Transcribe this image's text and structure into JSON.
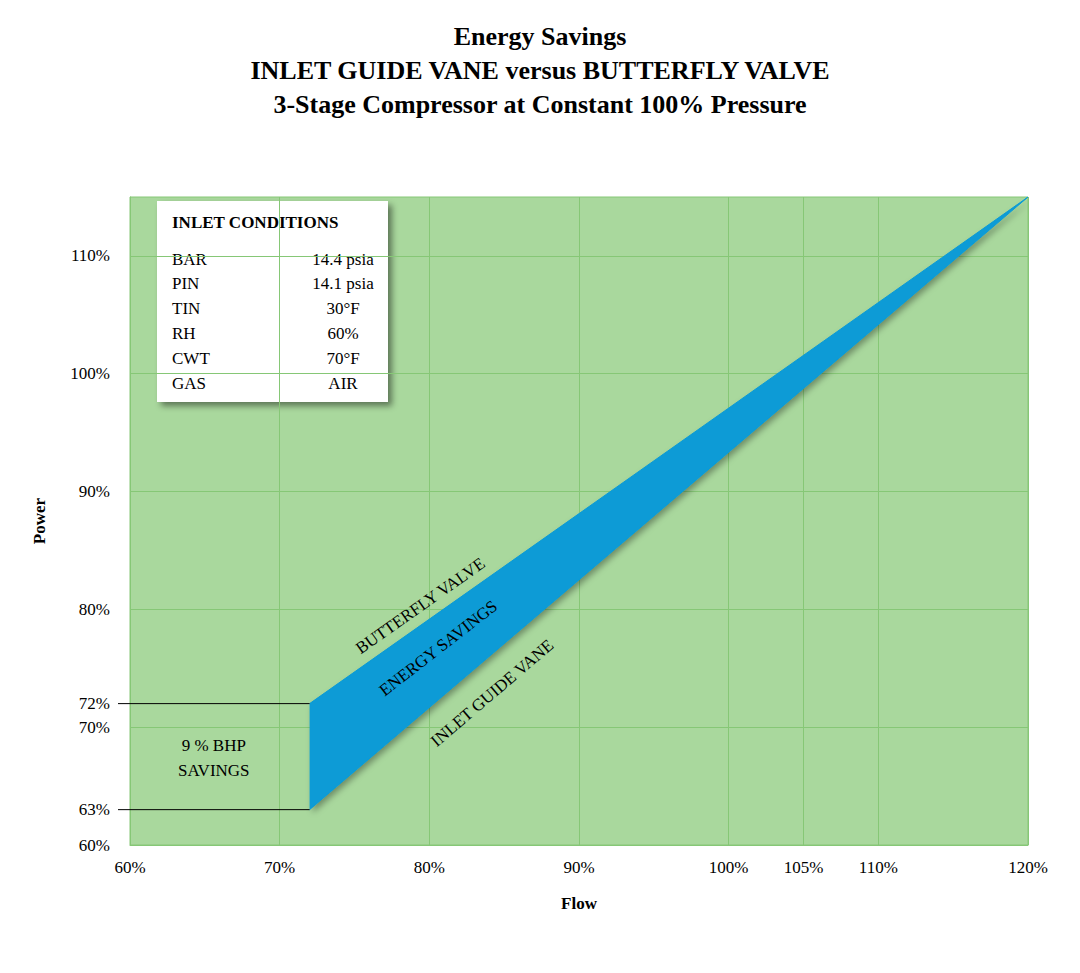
{
  "chart_data": {
    "type": "band",
    "title": "Energy Savings\nINLET GUIDE VANE versus BUTTERFLY VALVE\n3-Stage Compressor at Constant 100% Pressure",
    "x_label": "Flow",
    "y_label": "Power",
    "color": "#0a9bd6",
    "series": [
      {
        "name": "BUTTERFLY VALVE",
        "color": "#0a9bd6",
        "x": [
          72,
          120
        ],
        "values": [
          72,
          115
        ],
        "annotation": {
          "x": 79.4,
          "y": 80.3
        }
      },
      {
        "name": "INLET GUIDE VANE",
        "color": "#0a9bd6",
        "x": [
          72,
          120
        ],
        "values": [
          63,
          115
        ],
        "annotation": {
          "x": 84.2,
          "y": 72.9
        }
      }
    ],
    "band": {
      "text": "ENERGY SAVINGS",
      "x": 80.6,
      "y": 76.7
    },
    "annotations": [
      {
        "text": "9 % BHP\nSAVINGS",
        "x": 65.6,
        "y": 67.4
      },
      {
        "text": "72%",
        "y": 72,
        "x": [
          60,
          72
        ]
      },
      {
        "text": "63%",
        "y": 63,
        "x": [
          60,
          72
        ]
      }
    ],
    "table": {
      "title": "INLET CONDITIONS",
      "rows": [
        [
          "BAR",
          "14.4 psia"
        ],
        [
          "PIN",
          "14.1 psia"
        ],
        [
          "TIN",
          "30°F"
        ],
        [
          "RH",
          "60%"
        ],
        [
          "CWT",
          "70°F"
        ],
        [
          "GAS",
          "AIR"
        ]
      ]
    },
    "xlim": [
      60,
      120
    ],
    "xticks": [
      {
        "value": 60,
        "label": "60%"
      },
      {
        "value": 70,
        "label": "70%"
      },
      {
        "value": 80,
        "label": "80%"
      },
      {
        "value": 90,
        "label": "90%"
      },
      {
        "value": 100,
        "label": "100%"
      },
      {
        "value": 105,
        "label": "105%"
      },
      {
        "value": 110,
        "label": "110%"
      },
      {
        "value": 120,
        "label": "120%"
      }
    ],
    "ylim": [
      60,
      115
    ],
    "yticks": [
      {
        "value": 60,
        "label": "60%"
      },
      {
        "value": 70,
        "label": "70%"
      },
      {
        "value": 80,
        "label": "80%"
      },
      {
        "value": 90,
        "label": "90%"
      },
      {
        "value": 100,
        "label": "100%"
      },
      {
        "value": 110,
        "label": "110%"
      }
    ],
    "grid": true
  }
}
